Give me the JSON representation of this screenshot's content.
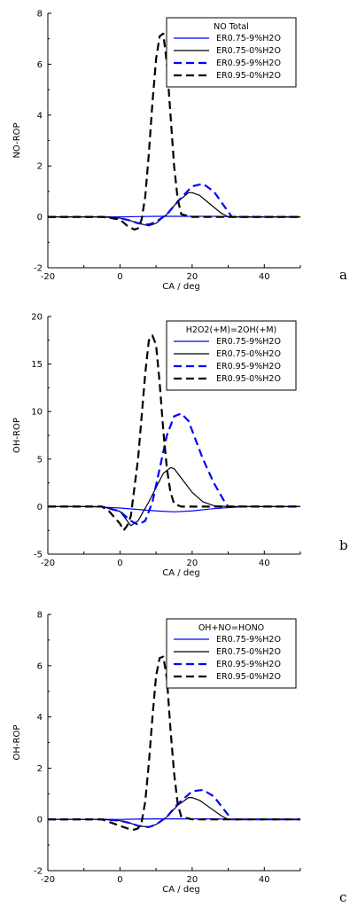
{
  "chart_data": [
    {
      "type": "line",
      "panel_label": "a",
      "xlabel": "CA / deg",
      "ylabel": "NO-ROP",
      "xlim": [
        -20,
        50
      ],
      "ylim": [
        -2,
        8
      ],
      "xticks": [
        -20,
        0,
        20,
        40
      ],
      "yticks": [
        -2,
        0,
        2,
        4,
        6,
        8
      ],
      "legend_title": "NO Total",
      "legend_position": "top-right",
      "grid": false,
      "series": [
        {
          "name": "ER0.75-9%H2O",
          "color": "#0000ff",
          "dash": "solid",
          "x": [
            -20,
            -5,
            0,
            5,
            10,
            15,
            20,
            25,
            30,
            35,
            50
          ],
          "y": [
            0,
            0,
            0,
            0.01,
            0.02,
            0.02,
            0.02,
            0.02,
            0.01,
            0,
            0
          ]
        },
        {
          "name": "ER0.75-0%H2O",
          "color": "#000000",
          "dash": "solid",
          "x": [
            -20,
            -5,
            0,
            3,
            5,
            8,
            10,
            13,
            16,
            19,
            20,
            22,
            25,
            28,
            30,
            35,
            50
          ],
          "y": [
            0,
            0,
            -0.05,
            -0.15,
            -0.25,
            -0.35,
            -0.25,
            0.1,
            0.6,
            0.95,
            0.95,
            0.85,
            0.5,
            0.15,
            0,
            0,
            0
          ]
        },
        {
          "name": "ER0.95-9%H2O",
          "color": "#0000ff",
          "dash": "dash",
          "x": [
            -20,
            -5,
            0,
            3,
            5,
            8,
            10,
            13,
            16,
            20,
            23,
            26,
            29,
            31,
            35,
            50
          ],
          "y": [
            0,
            0,
            -0.05,
            -0.15,
            -0.25,
            -0.3,
            -0.2,
            0.1,
            0.6,
            1.2,
            1.3,
            1.0,
            0.4,
            0,
            0,
            0
          ]
        },
        {
          "name": "ER0.95-0%H2O",
          "color": "#000000",
          "dash": "dash",
          "x": [
            -20,
            -10,
            -5,
            0,
            2,
            4,
            5,
            6,
            7,
            8,
            9,
            10,
            11,
            12,
            13,
            14,
            15,
            16,
            17,
            20,
            50
          ],
          "y": [
            0,
            0,
            0,
            -0.1,
            -0.35,
            -0.5,
            -0.45,
            -0.1,
            0.8,
            2.5,
            4.5,
            6.2,
            7.1,
            7.2,
            6.0,
            4.0,
            2.0,
            0.7,
            0.1,
            0,
            0
          ]
        }
      ]
    },
    {
      "type": "line",
      "panel_label": "b",
      "xlabel": "CA / deg",
      "ylabel": "OH-ROP",
      "xlim": [
        -20,
        50
      ],
      "ylim": [
        -5,
        20
      ],
      "xticks": [
        -20,
        0,
        20,
        40
      ],
      "yticks": [
        -5,
        0,
        5,
        10,
        15,
        20
      ],
      "legend_title": "H2O2(+M)=2OH(+M)",
      "legend_position": "top-right",
      "grid": false,
      "series": [
        {
          "name": "ER0.75-9%H2O",
          "color": "#0000ff",
          "dash": "solid",
          "x": [
            -20,
            -10,
            -5,
            0,
            5,
            10,
            15,
            20,
            25,
            30,
            35,
            50
          ],
          "y": [
            0,
            0,
            -0.05,
            -0.15,
            -0.3,
            -0.45,
            -0.55,
            -0.45,
            -0.25,
            -0.1,
            0,
            0
          ]
        },
        {
          "name": "ER0.75-0%H2O",
          "color": "#000000",
          "dash": "solid",
          "x": [
            -20,
            -5,
            0,
            2,
            3,
            5,
            8,
            10,
            12,
            14,
            15,
            18,
            20,
            23,
            26,
            30,
            35,
            50
          ],
          "y": [
            0,
            0,
            -0.5,
            -1.5,
            -2.0,
            -1.5,
            0.5,
            2.0,
            3.5,
            4.1,
            4.0,
            2.5,
            1.5,
            0.5,
            0.1,
            0,
            0,
            0
          ]
        },
        {
          "name": "ER0.95-9%H2O",
          "color": "#0000ff",
          "dash": "dash",
          "x": [
            -20,
            -5,
            0,
            3,
            5,
            7,
            9,
            11,
            13,
            15,
            17,
            19,
            21,
            23,
            26,
            29,
            30,
            35,
            50
          ],
          "y": [
            0,
            0,
            -0.5,
            -1.5,
            -1.9,
            -1.5,
            0.5,
            4.0,
            7.5,
            9.5,
            9.8,
            9.0,
            7.0,
            5.0,
            2.5,
            0.5,
            0,
            0,
            0
          ]
        },
        {
          "name": "ER0.95-0%H2O",
          "color": "#000000",
          "dash": "dash",
          "x": [
            -20,
            -10,
            -5,
            -3,
            0,
            1,
            2,
            3,
            5,
            7,
            8,
            9,
            10,
            11,
            12,
            13,
            14,
            15,
            17,
            20,
            50
          ],
          "y": [
            0,
            0,
            0,
            -0.5,
            -1.8,
            -2.5,
            -2.0,
            -1.0,
            5.0,
            14.0,
            17.5,
            18.0,
            17.0,
            13.0,
            8.0,
            4.0,
            1.5,
            0.3,
            0,
            0,
            0
          ]
        }
      ]
    },
    {
      "type": "line",
      "panel_label": "c",
      "xlabel": "CA / deg",
      "ylabel": "OH-ROP",
      "xlim": [
        -20,
        50
      ],
      "ylim": [
        -2,
        8
      ],
      "xticks": [
        -20,
        0,
        20,
        40
      ],
      "yticks": [
        -2,
        0,
        2,
        4,
        6,
        8
      ],
      "legend_title": "OH+NO=HONO",
      "legend_position": "top-right",
      "grid": false,
      "series": [
        {
          "name": "ER0.75-9%H2O",
          "color": "#0000ff",
          "dash": "solid",
          "x": [
            -20,
            -5,
            0,
            5,
            10,
            15,
            20,
            25,
            30,
            35,
            50
          ],
          "y": [
            0,
            0,
            0,
            0.01,
            0.02,
            0.02,
            0.02,
            0.02,
            0.01,
            0,
            0
          ]
        },
        {
          "name": "ER0.75-0%H2O",
          "color": "#000000",
          "dash": "solid",
          "x": [
            -20,
            -5,
            0,
            3,
            5,
            8,
            10,
            13,
            16,
            19,
            20,
            22,
            25,
            28,
            30,
            35,
            50
          ],
          "y": [
            0,
            0,
            -0.05,
            -0.15,
            -0.25,
            -0.3,
            -0.2,
            0.1,
            0.55,
            0.85,
            0.85,
            0.75,
            0.45,
            0.15,
            0,
            0,
            0
          ]
        },
        {
          "name": "ER0.95-9%H2O",
          "color": "#0000ff",
          "dash": "dash",
          "x": [
            -20,
            -5,
            0,
            3,
            5,
            8,
            10,
            13,
            16,
            20,
            23,
            26,
            29,
            31,
            35,
            50
          ],
          "y": [
            0,
            0,
            -0.05,
            -0.15,
            -0.25,
            -0.3,
            -0.2,
            0.1,
            0.6,
            1.1,
            1.15,
            0.9,
            0.35,
            0,
            0,
            0
          ]
        },
        {
          "name": "ER0.95-0%H2O",
          "color": "#000000",
          "dash": "dash",
          "x": [
            -20,
            -10,
            -5,
            0,
            2,
            4,
            5,
            6,
            7,
            8,
            9,
            10,
            11,
            12,
            13,
            14,
            15,
            16,
            17,
            20,
            50
          ],
          "y": [
            0,
            0,
            0,
            -0.25,
            -0.35,
            -0.4,
            -0.35,
            -0.1,
            0.7,
            2.2,
            4.0,
            5.6,
            6.3,
            6.35,
            5.5,
            3.5,
            1.8,
            0.6,
            0.1,
            0,
            0
          ]
        }
      ]
    }
  ]
}
